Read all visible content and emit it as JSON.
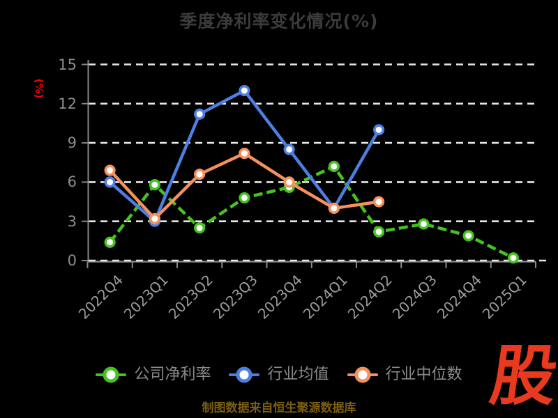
{
  "title": "季度净利率变化情况(%)",
  "y_axis_name": "(%)",
  "source_note": "制图数据来自恒生聚源数据库",
  "logo_text": "股",
  "colors": {
    "company_green": "#45c31f",
    "industry_avg_blue": "#4d7fe3",
    "industry_median_orange": "#f6915c",
    "axis_gray": "#888888",
    "grid_white": "#e8e8e8",
    "title_gray": "#3b3b3b",
    "tick_label_gray": "#8d8d8d",
    "legend_text_gray": "#8a8a8a",
    "accent_red": "#f00000",
    "logo_red": "#e83a1e",
    "source_gold": "#7c5e10"
  },
  "chart_data": {
    "type": "line",
    "title": "季度净利率变化情况(%)",
    "ylabel": "(%)",
    "ylim": [
      0,
      15
    ],
    "yticks": [
      0,
      3,
      6,
      9,
      12,
      15
    ],
    "grid": "horizontal dashed white on black",
    "legend_position": "bottom",
    "categories": [
      "2022Q4",
      "2023Q1",
      "2023Q2",
      "2023Q3",
      "2023Q4",
      "2024Q1",
      "2024Q2",
      "2024Q3",
      "2024Q4",
      "2025Q1"
    ],
    "series": [
      {
        "key": "company-net-margin",
        "name": "公司净利率",
        "color": "#45c31f",
        "line_style": "dashed",
        "marker": "circle-white-fill",
        "values": [
          1.4,
          5.8,
          2.5,
          4.8,
          5.6,
          7.2,
          2.2,
          2.8,
          1.9,
          0.2
        ]
      },
      {
        "key": "industry-average",
        "name": "行业均值",
        "color": "#4d7fe3",
        "line_style": "solid",
        "marker": "circle-white-fill",
        "values": [
          6.0,
          3.0,
          11.2,
          13.0,
          8.5,
          4.0,
          10.0,
          null,
          null,
          null
        ]
      },
      {
        "key": "industry-median",
        "name": "行业中位数",
        "color": "#f6915c",
        "line_style": "solid",
        "marker": "circle-white-fill",
        "values": [
          6.9,
          3.2,
          6.6,
          8.2,
          6.0,
          4.0,
          4.5,
          null,
          null,
          null
        ]
      }
    ]
  }
}
